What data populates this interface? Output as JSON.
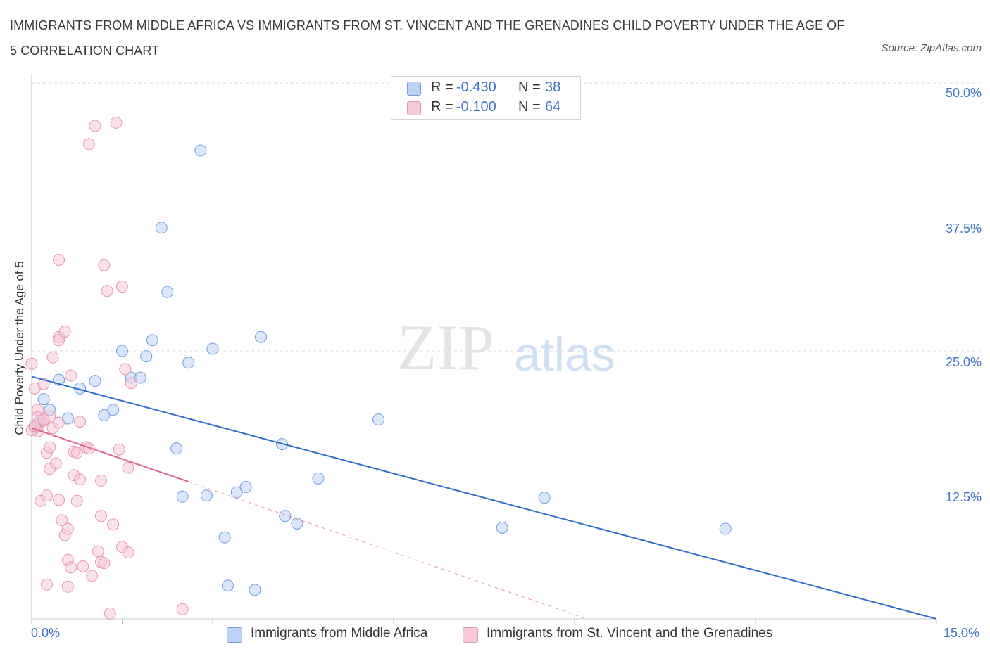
{
  "title": "IMMIGRANTS FROM MIDDLE AFRICA VS IMMIGRANTS FROM ST. VINCENT AND THE GRENADINES CHILD POVERTY UNDER THE AGE OF 5 CORRELATION CHART",
  "source": "Source: ZipAtlas.com",
  "watermark": {
    "zip": "ZIP",
    "atlas": "atlas"
  },
  "stats": [
    {
      "r_label": "R =",
      "r": "-0.430",
      "n_label": "N =",
      "n": "38"
    },
    {
      "r_label": "R =",
      "r": "-0.100",
      "n_label": "N =",
      "n": "64"
    }
  ],
  "legend": [
    "Immigrants from Middle Africa",
    "Immigrants from St. Vincent and the Grenadines"
  ],
  "colors": {
    "blue": "#6f9fe0",
    "blue_line": "#2f6fce",
    "pink": "#ea95b2",
    "pink_line": "#e0638c",
    "axis_text": "#3f73c8"
  },
  "chart_data": {
    "type": "scatter",
    "title": "IMMIGRANTS FROM MIDDLE AFRICA VS IMMIGRANTS FROM ST. VINCENT AND THE GRENADINES CHILD POVERTY UNDER THE AGE OF 5 CORRELATION CHART",
    "xlabel": "",
    "ylabel": "Child Poverty Under the Age of 5",
    "xlim": [
      0,
      15
    ],
    "ylim": [
      0,
      50
    ],
    "x_tick_labels": [
      "0.0%",
      "15.0%"
    ],
    "y_ticks": [
      12.5,
      25,
      37.5,
      50
    ],
    "y_tick_labels": [
      "12.5%",
      "25.0%",
      "37.5%",
      "50.0%"
    ],
    "grid": true,
    "legend_position": "bottom",
    "series": [
      {
        "name": "Immigrants from Middle Africa",
        "color": "#6f9fe0",
        "trend": {
          "x": [
            0,
            15
          ],
          "y": [
            22.6,
            0.0
          ]
        },
        "points": [
          [
            0.05,
            17.8
          ],
          [
            0.2,
            20.5
          ],
          [
            0.3,
            19.5
          ],
          [
            0.45,
            22.3
          ],
          [
            0.6,
            18.7
          ],
          [
            0.8,
            21.5
          ],
          [
            1.05,
            22.2
          ],
          [
            1.2,
            19.0
          ],
          [
            1.35,
            19.5
          ],
          [
            1.5,
            25.0
          ],
          [
            1.65,
            22.5
          ],
          [
            1.8,
            22.5
          ],
          [
            1.9,
            24.5
          ],
          [
            2.0,
            26.0
          ],
          [
            2.15,
            36.5
          ],
          [
            2.25,
            30.5
          ],
          [
            2.4,
            15.9
          ],
          [
            2.5,
            11.4
          ],
          [
            2.6,
            23.9
          ],
          [
            2.8,
            43.7
          ],
          [
            2.9,
            11.5
          ],
          [
            3.0,
            25.2
          ],
          [
            3.2,
            7.6
          ],
          [
            3.25,
            3.1
          ],
          [
            3.4,
            11.8
          ],
          [
            3.55,
            12.3
          ],
          [
            3.7,
            2.7
          ],
          [
            3.8,
            26.3
          ],
          [
            4.15,
            16.3
          ],
          [
            4.2,
            9.6
          ],
          [
            4.4,
            8.9
          ],
          [
            4.75,
            13.1
          ],
          [
            5.75,
            18.6
          ],
          [
            7.8,
            8.5
          ],
          [
            8.5,
            11.3
          ],
          [
            11.5,
            8.4
          ],
          [
            0.15,
            18.5
          ],
          [
            0.1,
            18.2
          ]
        ]
      },
      {
        "name": "Immigrants from St. Vincent and the Grenadines",
        "color": "#ea95b2",
        "trend": {
          "x": [
            0,
            2.6
          ],
          "y": [
            17.8,
            12.8
          ]
        },
        "trend_extension": {
          "x": [
            2.6,
            9.2
          ],
          "y": [
            12.8,
            0.0
          ]
        },
        "points": [
          [
            0.0,
            23.8
          ],
          [
            0.05,
            21.5
          ],
          [
            0.1,
            19.5
          ],
          [
            0.1,
            18.0
          ],
          [
            0.1,
            17.5
          ],
          [
            0.15,
            11.0
          ],
          [
            0.2,
            21.9
          ],
          [
            0.2,
            18.5
          ],
          [
            0.25,
            15.5
          ],
          [
            0.25,
            11.5
          ],
          [
            0.25,
            3.2
          ],
          [
            0.3,
            16.0
          ],
          [
            0.3,
            14.0
          ],
          [
            0.3,
            18.9
          ],
          [
            0.35,
            24.4
          ],
          [
            0.35,
            17.8
          ],
          [
            0.4,
            14.5
          ],
          [
            0.45,
            18.3
          ],
          [
            0.45,
            33.5
          ],
          [
            0.45,
            26.3
          ],
          [
            0.45,
            26.0
          ],
          [
            0.45,
            11.1
          ],
          [
            0.5,
            9.2
          ],
          [
            0.55,
            26.8
          ],
          [
            0.55,
            7.8
          ],
          [
            0.6,
            5.5
          ],
          [
            0.6,
            8.4
          ],
          [
            0.6,
            3.0
          ],
          [
            0.65,
            22.7
          ],
          [
            0.65,
            4.8
          ],
          [
            0.7,
            15.6
          ],
          [
            0.7,
            13.4
          ],
          [
            0.75,
            11.0
          ],
          [
            0.75,
            15.5
          ],
          [
            0.8,
            13.0
          ],
          [
            0.8,
            18.4
          ],
          [
            0.85,
            4.9
          ],
          [
            0.9,
            16.0
          ],
          [
            0.95,
            15.9
          ],
          [
            0.95,
            44.3
          ],
          [
            1.0,
            4.0
          ],
          [
            1.05,
            46.0
          ],
          [
            1.1,
            6.3
          ],
          [
            1.15,
            5.3
          ],
          [
            1.15,
            12.9
          ],
          [
            1.15,
            9.6
          ],
          [
            1.2,
            5.2
          ],
          [
            1.2,
            33.0
          ],
          [
            1.25,
            30.6
          ],
          [
            1.3,
            0.5
          ],
          [
            1.35,
            8.8
          ],
          [
            1.4,
            46.3
          ],
          [
            1.45,
            15.8
          ],
          [
            1.5,
            6.7
          ],
          [
            1.5,
            31.0
          ],
          [
            1.55,
            23.3
          ],
          [
            1.6,
            6.2
          ],
          [
            1.6,
            14.1
          ],
          [
            1.65,
            22.0
          ],
          [
            2.5,
            0.9
          ],
          [
            0.0,
            17.6
          ],
          [
            0.05,
            18.0
          ],
          [
            0.1,
            18.8
          ],
          [
            0.2,
            18.6
          ]
        ]
      }
    ]
  }
}
